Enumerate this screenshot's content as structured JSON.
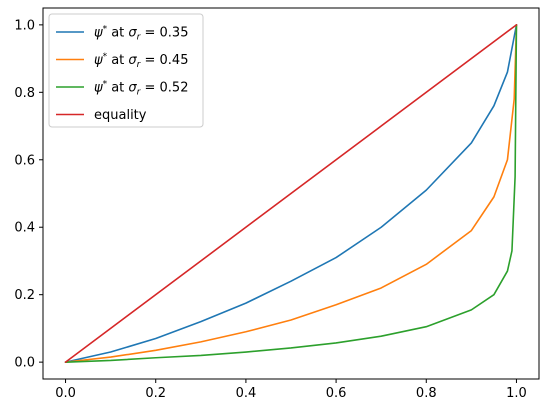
{
  "chart_data": {
    "type": "line",
    "title": "",
    "xlabel": "",
    "ylabel": "",
    "xlim": [
      -0.05,
      1.05
    ],
    "ylim": [
      -0.05,
      1.05
    ],
    "xticks": [
      "0.0",
      "0.2",
      "0.4",
      "0.6",
      "0.8",
      "1.0"
    ],
    "yticks": [
      "0.0",
      "0.2",
      "0.4",
      "0.6",
      "0.8",
      "1.0"
    ],
    "grid": false,
    "legend_position": "top-left",
    "series": [
      {
        "name": "ψ* at σr = 0.35",
        "label_prefix": "ψ",
        "label_mid": " at σ",
        "label_sub": "r",
        "label_value": " = 0.35",
        "color": "#1f77b4",
        "x": [
          0,
          0.1,
          0.2,
          0.3,
          0.4,
          0.5,
          0.6,
          0.7,
          0.8,
          0.9,
          0.95,
          0.98,
          1.0
        ],
        "y": [
          0,
          0.03,
          0.07,
          0.12,
          0.175,
          0.24,
          0.31,
          0.4,
          0.51,
          0.65,
          0.76,
          0.86,
          1.0
        ]
      },
      {
        "name": "ψ* at σr = 0.45",
        "label_prefix": "ψ",
        "label_mid": " at σ",
        "label_sub": "r",
        "label_value": " = 0.45",
        "color": "#ff7f0e",
        "x": [
          0,
          0.1,
          0.2,
          0.3,
          0.4,
          0.5,
          0.6,
          0.7,
          0.8,
          0.9,
          0.95,
          0.98,
          0.995,
          1.0
        ],
        "y": [
          0,
          0.015,
          0.035,
          0.06,
          0.09,
          0.125,
          0.17,
          0.22,
          0.29,
          0.39,
          0.49,
          0.6,
          0.78,
          1.0
        ]
      },
      {
        "name": "ψ* at σr = 0.52",
        "label_prefix": "ψ",
        "label_mid": " at σ",
        "label_sub": "r",
        "label_value": " = 0.52",
        "color": "#2ca02c",
        "x": [
          0,
          0.1,
          0.2,
          0.3,
          0.4,
          0.5,
          0.6,
          0.7,
          0.8,
          0.9,
          0.95,
          0.98,
          0.99,
          0.997,
          1.0
        ],
        "y": [
          0,
          0.005,
          0.013,
          0.02,
          0.03,
          0.042,
          0.057,
          0.077,
          0.105,
          0.155,
          0.2,
          0.27,
          0.33,
          0.55,
          1.0
        ]
      },
      {
        "name": "equality",
        "label_prefix": "",
        "label_mid": "",
        "label_sub": "",
        "label_value": "equality",
        "color": "#d62728",
        "x": [
          0,
          1
        ],
        "y": [
          0,
          1
        ]
      }
    ]
  }
}
